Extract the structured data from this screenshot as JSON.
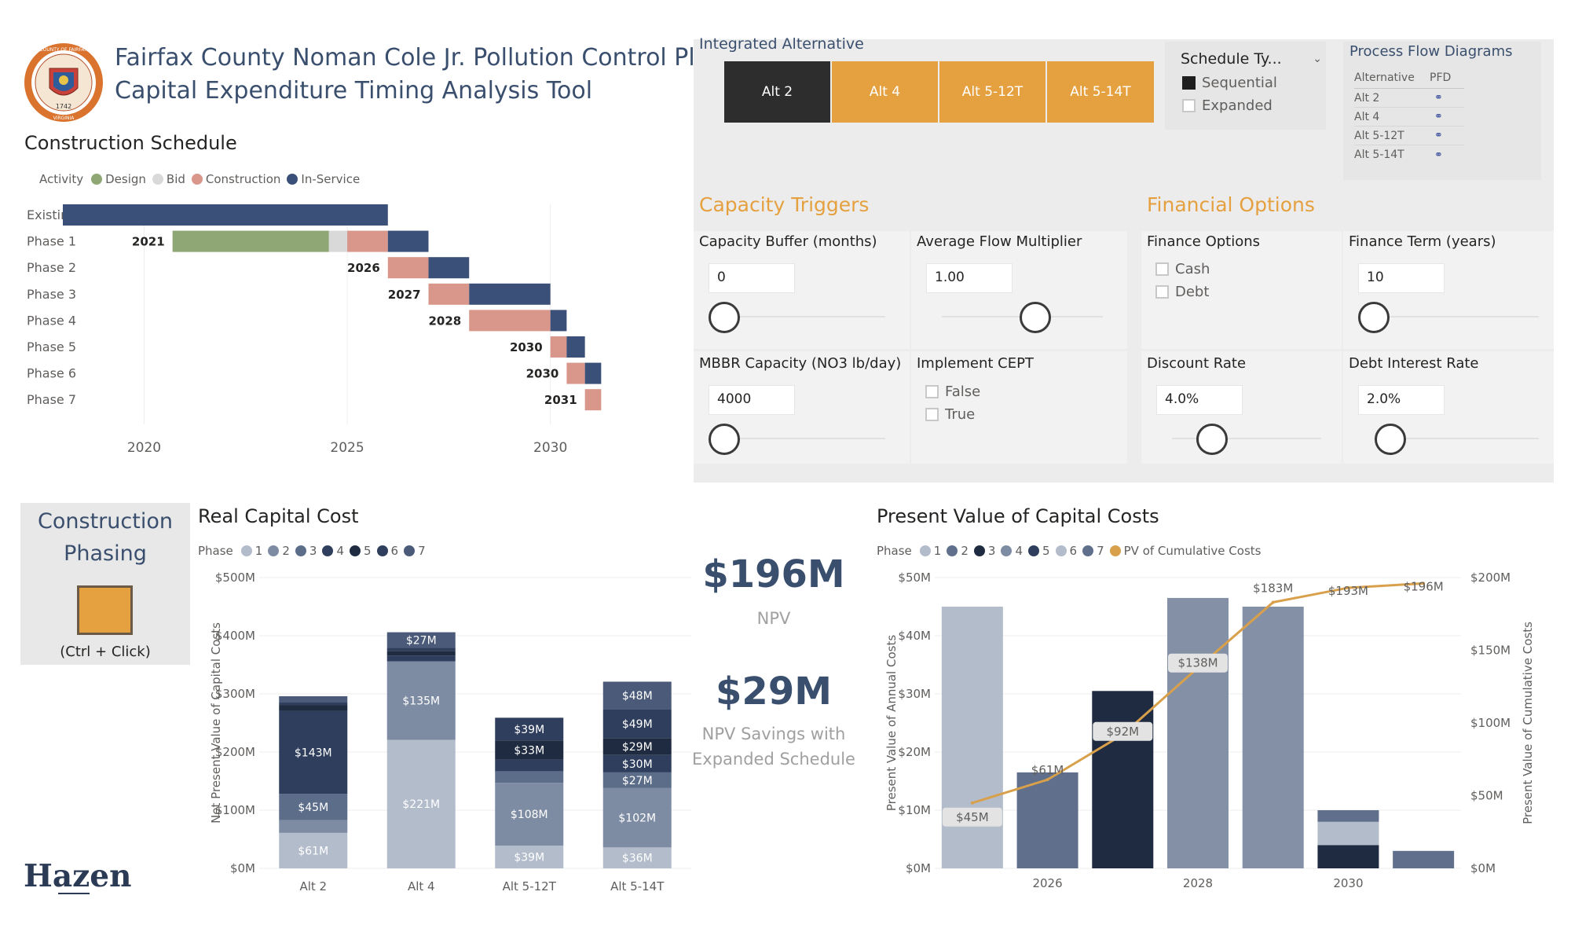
{
  "header": {
    "title_line1": "Fairfax County Noman Cole Jr. Pollution Control Plant",
    "title_line2": "Capital Expenditure Timing Analysis Tool",
    "seal_text_top": "COUNTY OF FAIRFAX",
    "seal_year": "1742",
    "seal_text_bottom": "VIRGINIA"
  },
  "schedule": {
    "title": "Construction Schedule",
    "legend_label": "Activity",
    "legend": [
      {
        "name": "Design",
        "color": "#8fa775"
      },
      {
        "name": "Bid",
        "color": "#d9d9d9"
      },
      {
        "name": "Construction",
        "color": "#d9968a"
      },
      {
        "name": "In-Service",
        "color": "#3b5078"
      }
    ],
    "rows": [
      {
        "label": "Existing",
        "start_label": "",
        "segments": [
          {
            "type": "In-Service",
            "from": 2018.0,
            "to": 2026.0
          }
        ]
      },
      {
        "label": "Phase 1",
        "start_label": "2021",
        "segments": [
          {
            "type": "Design",
            "from": 2020.7,
            "to": 2024.55
          },
          {
            "type": "Bid",
            "from": 2024.55,
            "to": 2025.0
          },
          {
            "type": "Construction",
            "from": 2025.0,
            "to": 2026.0
          },
          {
            "type": "In-Service",
            "from": 2026.0,
            "to": 2027.0
          }
        ]
      },
      {
        "label": "Phase 2",
        "start_label": "2026",
        "segments": [
          {
            "type": "Construction",
            "from": 2026.0,
            "to": 2027.0
          },
          {
            "type": "In-Service",
            "from": 2027.0,
            "to": 2028.0
          }
        ]
      },
      {
        "label": "Phase 3",
        "start_label": "2027",
        "segments": [
          {
            "type": "Construction",
            "from": 2027.0,
            "to": 2028.0
          },
          {
            "type": "In-Service",
            "from": 2028.0,
            "to": 2030.0
          }
        ]
      },
      {
        "label": "Phase 4",
        "start_label": "2028",
        "segments": [
          {
            "type": "Construction",
            "from": 2028.0,
            "to": 2030.0
          },
          {
            "type": "In-Service",
            "from": 2030.0,
            "to": 2030.4
          }
        ]
      },
      {
        "label": "Phase 5",
        "start_label": "2030",
        "segments": [
          {
            "type": "Construction",
            "from": 2030.0,
            "to": 2030.4
          },
          {
            "type": "In-Service",
            "from": 2030.4,
            "to": 2030.85
          }
        ]
      },
      {
        "label": "Phase 6",
        "start_label": "2030",
        "segments": [
          {
            "type": "Construction",
            "from": 2030.4,
            "to": 2030.85
          },
          {
            "type": "In-Service",
            "from": 2030.85,
            "to": 2031.25
          }
        ]
      },
      {
        "label": "Phase 7",
        "start_label": "2031",
        "segments": [
          {
            "type": "Construction",
            "from": 2030.85,
            "to": 2031.25
          }
        ]
      }
    ],
    "x_ticks": [
      "2020",
      "2025",
      "2030"
    ],
    "x_range": [
      2018,
      2032.5
    ]
  },
  "alternative": {
    "title": "Integrated Alternative",
    "buttons": [
      "Alt 2",
      "Alt 4",
      "Alt 5-12T",
      "Alt 5-14T"
    ],
    "selected": "Alt 2"
  },
  "schedule_type": {
    "label": "Schedule Ty...",
    "options": [
      {
        "label": "Sequential",
        "checked": true
      },
      {
        "label": "Expanded",
        "checked": false
      }
    ]
  },
  "pfd": {
    "title": "Process Flow Diagrams",
    "col1": "Alternative",
    "col2": "PFD",
    "rows": [
      "Alt 2",
      "Alt 4",
      "Alt 5-12T",
      "Alt 5-14T"
    ]
  },
  "capacity": {
    "title": "Capacity Triggers",
    "buffer_label": "Capacity Buffer (months)",
    "buffer_value": "0",
    "buffer_slider": 0,
    "flow_label": "Average Flow Multiplier",
    "flow_value": "1.00",
    "flow_slider": 0.5,
    "mbbr_label": "MBBR Capacity (NO3 lb/day)",
    "mbbr_value": "4000",
    "mbbr_slider": 0,
    "cept_label": "Implement CEPT",
    "cept_options": [
      "False",
      "True"
    ]
  },
  "financial": {
    "title": "Financial Options",
    "options_label": "Finance Options",
    "options": [
      "Cash",
      "Debt"
    ],
    "term_label": "Finance Term (years)",
    "term_value": "10",
    "term_slider": 0,
    "discount_label": "Discount Rate",
    "discount_value": "4.0%",
    "discount_slider": 0.27,
    "debt_label": "Debt Interest Rate",
    "debt_value": "2.0%",
    "debt_slider": 0.1
  },
  "phasing": {
    "title_line1": "Construction",
    "title_line2": "Phasing",
    "hint": "(Ctrl + Click)",
    "swatch_color": "#e5a03f"
  },
  "kpi": {
    "npv_value": "$196M",
    "npv_label": "NPV",
    "savings_value": "$29M",
    "savings_line1": "NPV Savings with",
    "savings_line2": "Expanded Schedule"
  },
  "logo": {
    "text": "Hazen"
  },
  "chart_data": [
    {
      "type": "bar",
      "stacked": true,
      "title": "Real Capital Cost",
      "legend_label": "Phase",
      "legend": [
        "1",
        "2",
        "3",
        "4",
        "5",
        "6",
        "7"
      ],
      "ylabel": "Net Present Value of Capital Costs",
      "ylim": [
        0,
        500
      ],
      "y_ticks": [
        "$0M",
        "$100M",
        "$200M",
        "$300M",
        "$400M",
        "$500M"
      ],
      "categories": [
        "Alt 2",
        "Alt 4",
        "Alt 5-12T",
        "Alt 5-14T"
      ],
      "series": [
        {
          "name": "1",
          "color": "#b3bccb",
          "values": [
            61,
            221,
            39,
            36
          ],
          "labels": [
            "$61M",
            "$221M",
            "$39M",
            "$36M"
          ]
        },
        {
          "name": "2",
          "color": "#7d8ba3",
          "values": [
            22,
            135,
            108,
            102
          ],
          "labels": [
            "",
            "$135M",
            "$108M",
            "$102M"
          ]
        },
        {
          "name": "3",
          "color": "#5c6d8a",
          "values": [
            45,
            0,
            20,
            27
          ],
          "labels": [
            "$45M",
            "",
            "",
            "$27M"
          ]
        },
        {
          "name": "4",
          "color": "#2e3e5c",
          "values": [
            143,
            10,
            20,
            30
          ],
          "labels": [
            "$143M",
            "",
            "",
            "$30M"
          ]
        },
        {
          "name": "5",
          "color": "#1f2b40",
          "values": [
            10,
            8,
            33,
            29
          ],
          "labels": [
            "",
            "",
            "$33M",
            "$29M"
          ]
        },
        {
          "name": "6",
          "color": "#2e3e5c",
          "values": [
            5,
            5,
            39,
            49
          ],
          "labels": [
            "",
            "",
            "$39M",
            "$49M"
          ]
        },
        {
          "name": "7",
          "color": "#4a5a78",
          "values": [
            10,
            27,
            0,
            48
          ],
          "labels": [
            "",
            "$27M",
            "",
            "$48M"
          ]
        }
      ]
    },
    {
      "type": "bar+line",
      "title": "Present Value of Capital Costs",
      "legend_label": "Phase",
      "legend": [
        "1",
        "2",
        "3",
        "4",
        "5",
        "6",
        "7",
        "PV of Cumulative Costs"
      ],
      "ylabel": "Present Value of Annual Costs",
      "y2label": "Present Value of Cumulative Costs",
      "ylim": [
        0,
        50
      ],
      "y_ticks": [
        "$0M",
        "$10M",
        "$20M",
        "$30M",
        "$40M",
        "$50M"
      ],
      "y2lim": [
        0,
        200
      ],
      "y2_ticks": [
        "$0M",
        "$50M",
        "$100M",
        "$150M",
        "$200M"
      ],
      "x_ticks": [
        "2026",
        "2028",
        "2030"
      ],
      "bars": [
        {
          "stack": [
            {
              "phase": "1",
              "value": 45,
              "color": "#b3bccb"
            }
          ],
          "bar_label": "$45M"
        },
        {
          "stack": [
            {
              "phase": "2",
              "value": 16.5,
              "color": "#5f6f8c"
            }
          ],
          "bar_label": "$61M"
        },
        {
          "stack": [
            {
              "phase": "3",
              "value": 30.5,
              "color": "#1f2b40"
            }
          ],
          "bar_label": "$92M"
        },
        {
          "stack": [
            {
              "phase": "4",
              "value": 46.5,
              "color": "#8390a6"
            }
          ],
          "bar_label": "$138M"
        },
        {
          "stack": [
            {
              "phase": "6",
              "value": 45,
              "color": "#8390a6"
            }
          ],
          "bar_label": "$183M"
        },
        {
          "stack": [
            {
              "phase": "5",
              "value": 4,
              "color": "#1f2b40"
            },
            {
              "phase": "6",
              "value": 4,
              "color": "#b3bccb"
            },
            {
              "phase": "7",
              "value": 2,
              "color": "#5f6f8c"
            }
          ],
          "bar_label": "$193M"
        },
        {
          "stack": [
            {
              "phase": "7",
              "value": 3,
              "color": "#5f6f8c"
            }
          ],
          "bar_label": "$196M"
        }
      ],
      "line": {
        "name": "PV of Cumulative Costs",
        "color": "#d9a04c",
        "values": [
          45,
          61,
          92,
          138,
          183,
          193,
          196
        ]
      }
    }
  ]
}
